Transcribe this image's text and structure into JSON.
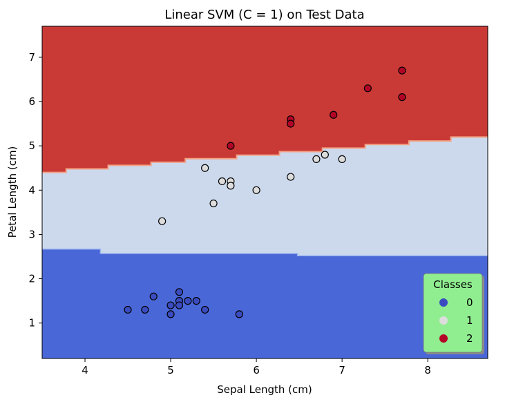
{
  "chart_data": {
    "type": "scatter",
    "title": "Linear SVM (C = 1) on Test Data",
    "xlabel": "Sepal Length (cm)",
    "ylabel": "Petal Length (cm)",
    "xlim": [
      3.5,
      8.7
    ],
    "ylim": [
      0.2,
      7.7
    ],
    "xticks": [
      "4",
      "5",
      "6",
      "7",
      "8"
    ],
    "yticks": [
      "1",
      "2",
      "3",
      "4",
      "5",
      "6",
      "7"
    ],
    "grid": false,
    "decision_regions": {
      "class_colors": [
        "#4a67d8",
        "#ccd9ed",
        "#c93a36"
      ],
      "boundary_0_1": [
        [
          3.5,
          2.67
        ],
        [
          4.18,
          2.67
        ],
        [
          4.18,
          2.57
        ],
        [
          6.48,
          2.57
        ],
        [
          6.48,
          2.52
        ],
        [
          8.7,
          2.52
        ]
      ],
      "boundary_1_2": [
        [
          3.5,
          4.4
        ],
        [
          3.78,
          4.4
        ],
        [
          3.78,
          4.48
        ],
        [
          4.27,
          4.48
        ],
        [
          4.27,
          4.56
        ],
        [
          4.77,
          4.56
        ],
        [
          4.77,
          4.63
        ],
        [
          5.17,
          4.63
        ],
        [
          5.17,
          4.71
        ],
        [
          5.77,
          4.71
        ],
        [
          5.77,
          4.79
        ],
        [
          6.27,
          4.79
        ],
        [
          6.27,
          4.87
        ],
        [
          6.77,
          4.87
        ],
        [
          6.77,
          4.95
        ],
        [
          7.27,
          4.95
        ],
        [
          7.27,
          5.03
        ],
        [
          7.78,
          5.03
        ],
        [
          7.78,
          5.11
        ],
        [
          8.27,
          5.11
        ],
        [
          8.27,
          5.2
        ],
        [
          8.7,
          5.2
        ]
      ]
    },
    "legend": {
      "title": "Classes",
      "position": "lower-right",
      "background": "#90ee90",
      "entries": [
        {
          "label": "0",
          "color": "#3b4cc0"
        },
        {
          "label": "1",
          "color": "#dddddd"
        },
        {
          "label": "2",
          "color": "#b40426"
        }
      ]
    },
    "series": [
      {
        "label": "0",
        "color": "#3b4cc0",
        "points": [
          [
            4.5,
            1.3
          ],
          [
            4.7,
            1.3
          ],
          [
            4.8,
            1.6
          ],
          [
            5.0,
            1.4
          ],
          [
            5.0,
            1.2
          ],
          [
            5.1,
            1.7
          ],
          [
            5.1,
            1.5
          ],
          [
            5.1,
            1.4
          ],
          [
            5.2,
            1.5
          ],
          [
            5.3,
            1.5
          ],
          [
            5.4,
            1.3
          ],
          [
            5.8,
            1.2
          ]
        ]
      },
      {
        "label": "1",
        "color": "#dddddd",
        "points": [
          [
            4.9,
            3.3
          ],
          [
            5.4,
            4.5
          ],
          [
            5.5,
            3.7
          ],
          [
            5.6,
            4.2
          ],
          [
            5.7,
            4.2
          ],
          [
            5.7,
            4.1
          ],
          [
            6.0,
            4.0
          ],
          [
            6.4,
            4.3
          ],
          [
            6.7,
            4.7
          ],
          [
            6.8,
            4.8
          ],
          [
            7.0,
            4.7
          ]
        ]
      },
      {
        "label": "2",
        "color": "#b40426",
        "points": [
          [
            5.7,
            5.0
          ],
          [
            6.4,
            5.6
          ],
          [
            6.4,
            5.5
          ],
          [
            6.9,
            5.7
          ],
          [
            7.3,
            6.3
          ],
          [
            7.7,
            6.7
          ],
          [
            7.7,
            6.1
          ]
        ]
      }
    ]
  }
}
